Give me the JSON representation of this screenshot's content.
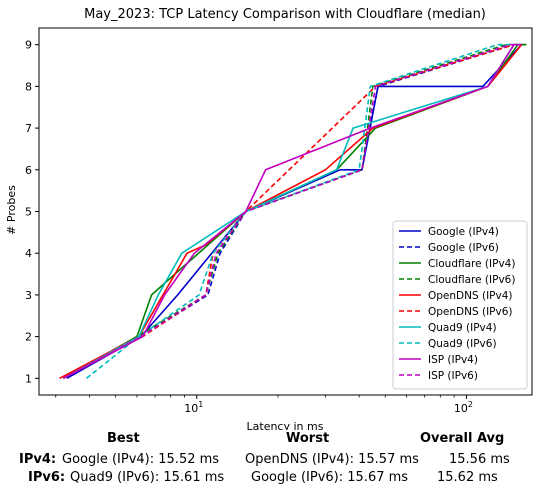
{
  "chart_data": {
    "type": "line",
    "title": "May_2023: TCP Latency Comparison with Cloudflare (median)",
    "xlabel": "Latency in ms",
    "ylabel": "# Probes",
    "xscale": "log",
    "xlim": [
      2.6,
      175
    ],
    "ylim": [
      0.6,
      9.4
    ],
    "xticks": [
      10,
      100
    ],
    "xtick_labels": [
      "10^1",
      "10^2"
    ],
    "yticks": [
      1,
      2,
      3,
      4,
      5,
      6,
      7,
      8,
      9
    ],
    "ytick_labels": [
      "1",
      "2",
      "3",
      "4",
      "5",
      "6",
      "7",
      "8",
      "9"
    ],
    "grid": false,
    "legend_position": "lower-right",
    "series": [
      {
        "name": "Google (IPv4)",
        "color": "#0000cc",
        "style": "solid",
        "x": [
          3.3,
          6.2,
          8.5,
          15.2,
          34,
          41,
          47,
          115,
          160
        ],
        "y": [
          1,
          2,
          3,
          5,
          6,
          6,
          8,
          8,
          9
        ]
      },
      {
        "name": "Google (IPv6)",
        "color": "#0000cc",
        "style": "dashed",
        "x": [
          3.2,
          6.2,
          11.0,
          12.2,
          15.2,
          41,
          47,
          150,
          165
        ],
        "y": [
          1,
          2,
          3,
          4,
          5,
          6,
          8,
          9,
          9
        ]
      },
      {
        "name": "Cloudflare (IPv4)",
        "color": "#008000",
        "style": "solid",
        "x": [
          3.2,
          6.0,
          6.8,
          8.3,
          15.2,
          33,
          46,
          120,
          155,
          167
        ],
        "y": [
          1,
          2,
          3,
          3.5,
          5,
          6,
          7,
          8,
          9,
          9
        ]
      },
      {
        "name": "Cloudflare (IPv6)",
        "color": "#008000",
        "style": "dashed",
        "x": [
          3.2,
          6.0,
          10.8,
          12.0,
          15.2,
          41,
          45,
          140,
          155
        ],
        "y": [
          1,
          2,
          3,
          4,
          5,
          6,
          8,
          9,
          9
        ]
      },
      {
        "name": "OpenDNS (IPv4)",
        "color": "#ff0000",
        "style": "solid",
        "x": [
          3.1,
          6.1,
          9.2,
          10.8,
          15.2,
          30,
          45,
          120,
          160
        ],
        "y": [
          1,
          2,
          4,
          4.2,
          5,
          6,
          7,
          8,
          9
        ]
      },
      {
        "name": "OpenDNS (IPv6)",
        "color": "#ff0000",
        "style": "dashed",
        "x": [
          3.2,
          6.3,
          10.8,
          11.5,
          15.2,
          22,
          46,
          150,
          160
        ],
        "y": [
          1,
          2,
          3,
          4,
          5,
          6,
          8,
          9,
          9
        ]
      },
      {
        "name": "Quad9 (IPv4)",
        "color": "#00bbbb",
        "style": "solid",
        "x": [
          3.2,
          6.1,
          7.2,
          8.8,
          15.2,
          33,
          38,
          120,
          150,
          160
        ],
        "y": [
          1,
          2,
          3,
          4,
          5,
          6,
          7,
          8,
          9,
          9
        ]
      },
      {
        "name": "Quad9 (IPv6)",
        "color": "#00bbbb",
        "style": "dashed",
        "x": [
          3.9,
          6.1,
          10.2,
          11.5,
          15.2,
          40,
          44,
          130,
          160
        ],
        "y": [
          1,
          2,
          3,
          4,
          5,
          6,
          8,
          9,
          9
        ]
      },
      {
        "name": "ISP (IPv4)",
        "color": "#c000c0",
        "style": "solid",
        "x": [
          3.2,
          6.3,
          7.6,
          9.8,
          15.2,
          18,
          44,
          120,
          150,
          160
        ],
        "y": [
          1,
          2,
          3,
          4,
          5,
          6,
          7,
          8,
          9,
          9
        ]
      },
      {
        "name": "ISP (IPv6)",
        "color": "#c000c0",
        "style": "dashed",
        "x": [
          3.2,
          6.2,
          10.8,
          11.8,
          15.2,
          41,
          46,
          145,
          160
        ],
        "y": [
          1,
          2,
          3,
          4,
          5,
          6,
          8,
          9,
          9
        ]
      }
    ]
  },
  "summary": {
    "headers": {
      "best": "Best",
      "worst": "Worst",
      "avg": "Overall Avg"
    },
    "rows": [
      {
        "label": "IPv4:",
        "best": "Google (IPv4): 15.52 ms",
        "worst": "OpenDNS (IPv4): 15.57 ms",
        "avg": "15.56 ms"
      },
      {
        "label": "IPv6:",
        "best": "Quad9 (IPv6): 15.61 ms",
        "worst": "Google (IPv6): 15.67 ms",
        "avg": "15.62 ms"
      }
    ]
  }
}
